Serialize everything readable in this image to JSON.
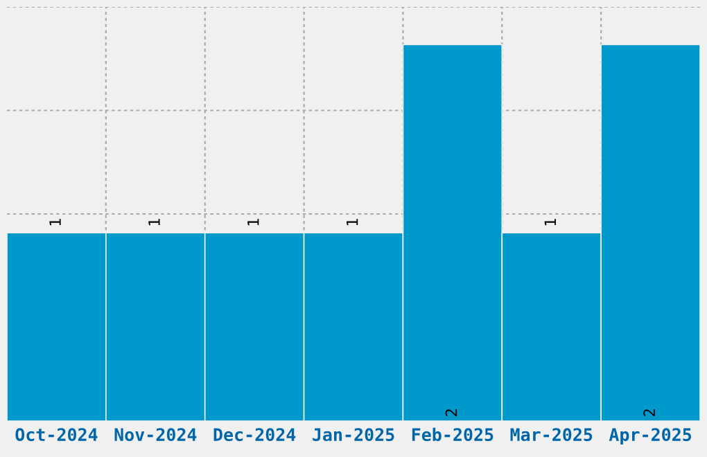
{
  "chart_data": {
    "type": "bar",
    "categories": [
      "Oct-2024",
      "Nov-2024",
      "Dec-2024",
      "Jan-2025",
      "Feb-2025",
      "Mar-2025",
      "Apr-2025"
    ],
    "values": [
      1,
      1,
      1,
      1,
      2,
      1,
      2
    ],
    "color": "#0099cc",
    "data_labels": true,
    "ylim": [
      0,
      2.2
    ],
    "tick_labels": "x",
    "grid": true
  }
}
